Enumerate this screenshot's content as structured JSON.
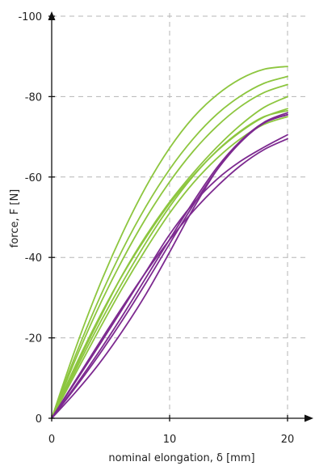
{
  "chart_data": {
    "type": "line",
    "xlabel": "nominal elongation, δ [mm]",
    "ylabel": "force, F [N]",
    "xlim": [
      0,
      20
    ],
    "ylim": [
      0,
      -100
    ],
    "x_ticks": [
      "0",
      "10",
      "20"
    ],
    "y_ticks": [
      "0",
      "-20",
      "-40",
      "-60",
      "-80",
      "-100"
    ],
    "grid": true,
    "colors": {
      "green": "#8dc63f",
      "purple": "#7d2a90"
    },
    "series": [
      {
        "color": "green",
        "x": [
          0,
          2,
          4,
          6,
          8,
          10,
          12,
          14,
          16,
          18,
          20
        ],
        "y": [
          0,
          -17.2,
          -32.6,
          -46.0,
          -57.6,
          -67.2,
          -74.8,
          -80.4,
          -84.4,
          -86.8,
          -87.5
        ]
      },
      {
        "color": "green",
        "x": [
          0,
          2,
          4,
          6,
          8,
          10,
          12,
          14,
          16,
          18,
          20
        ],
        "y": [
          0,
          -15.5,
          -29.5,
          -41.9,
          -52.7,
          -61.9,
          -69.5,
          -75.6,
          -80.1,
          -83.3,
          -85.0
        ]
      },
      {
        "color": "green",
        "x": [
          0,
          2,
          4,
          6,
          8,
          10,
          12,
          14,
          16,
          18,
          20
        ],
        "y": [
          0,
          -14.5,
          -27.7,
          -39.4,
          -49.8,
          -58.8,
          -66.4,
          -72.6,
          -77.5,
          -81.0,
          -83.0
        ]
      },
      {
        "color": "green",
        "x": [
          0,
          2,
          4,
          6,
          8,
          10,
          12,
          14,
          16,
          18,
          20
        ],
        "y": [
          0,
          -13.0,
          -24.9,
          -35.6,
          -45.0,
          -53.4,
          -60.4,
          -66.4,
          -71.2,
          -74.9,
          -77.0
        ]
      },
      {
        "color": "green",
        "x": [
          0,
          2,
          4,
          6,
          8,
          10,
          12,
          14,
          16,
          18,
          20
        ],
        "y": [
          0,
          -12.5,
          -24.4,
          -35.7,
          -45.4,
          -53.8,
          -61.0,
          -67.4,
          -72.9,
          -77.3,
          -80.0
        ]
      },
      {
        "color": "green",
        "x": [
          0,
          2,
          4,
          6,
          8,
          10,
          12,
          14,
          16,
          18,
          20
        ],
        "y": [
          0,
          -11.8,
          -23.2,
          -33.8,
          -43.7,
          -52.6,
          -60.2,
          -66.5,
          -71.4,
          -75.0,
          -76.5
        ]
      },
      {
        "color": "green",
        "x": [
          0,
          2,
          4,
          6,
          8,
          10,
          12,
          14,
          16,
          18,
          20
        ],
        "y": [
          0,
          -11.0,
          -21.9,
          -32.4,
          -42.1,
          -51.0,
          -58.5,
          -64.6,
          -69.5,
          -73.1,
          -75.0
        ]
      },
      {
        "color": "purple",
        "x": [
          0,
          2,
          4,
          6,
          8,
          10,
          12,
          14,
          16,
          18,
          20
        ],
        "y": [
          0,
          -9.3,
          -18.6,
          -27.7,
          -36.4,
          -44.4,
          -51.5,
          -57.6,
          -62.8,
          -66.8,
          -69.5
        ]
      },
      {
        "color": "purple",
        "x": [
          0,
          2,
          4,
          6,
          8,
          10,
          12,
          14,
          16,
          18,
          20
        ],
        "y": [
          0,
          -9.0,
          -18.0,
          -27.2,
          -36.5,
          -45.7,
          -53.4,
          -59.4,
          -63.9,
          -67.4,
          -70.5
        ]
      },
      {
        "color": "purple",
        "x": [
          0,
          2,
          4,
          6,
          8,
          10,
          12,
          14,
          16,
          18,
          20
        ],
        "y": [
          0,
          -8.0,
          -16.5,
          -25.5,
          -35.0,
          -44.5,
          -53.8,
          -62.3,
          -68.9,
          -73.5,
          -75.5
        ]
      },
      {
        "color": "purple",
        "x": [
          0,
          2,
          4,
          6,
          8,
          10,
          12,
          14,
          16,
          18,
          20
        ],
        "y": [
          0,
          -7.6,
          -15.7,
          -24.4,
          -33.7,
          -43.4,
          -53.0,
          -61.7,
          -68.6,
          -73.4,
          -75.5
        ]
      },
      {
        "color": "purple",
        "x": [
          0,
          2,
          4,
          6,
          8,
          10,
          12,
          14,
          16,
          18,
          20
        ],
        "y": [
          0,
          -6.4,
          -13.5,
          -21.7,
          -30.9,
          -41.3,
          -52.1,
          -61.7,
          -68.9,
          -73.6,
          -76.0
        ]
      }
    ]
  }
}
